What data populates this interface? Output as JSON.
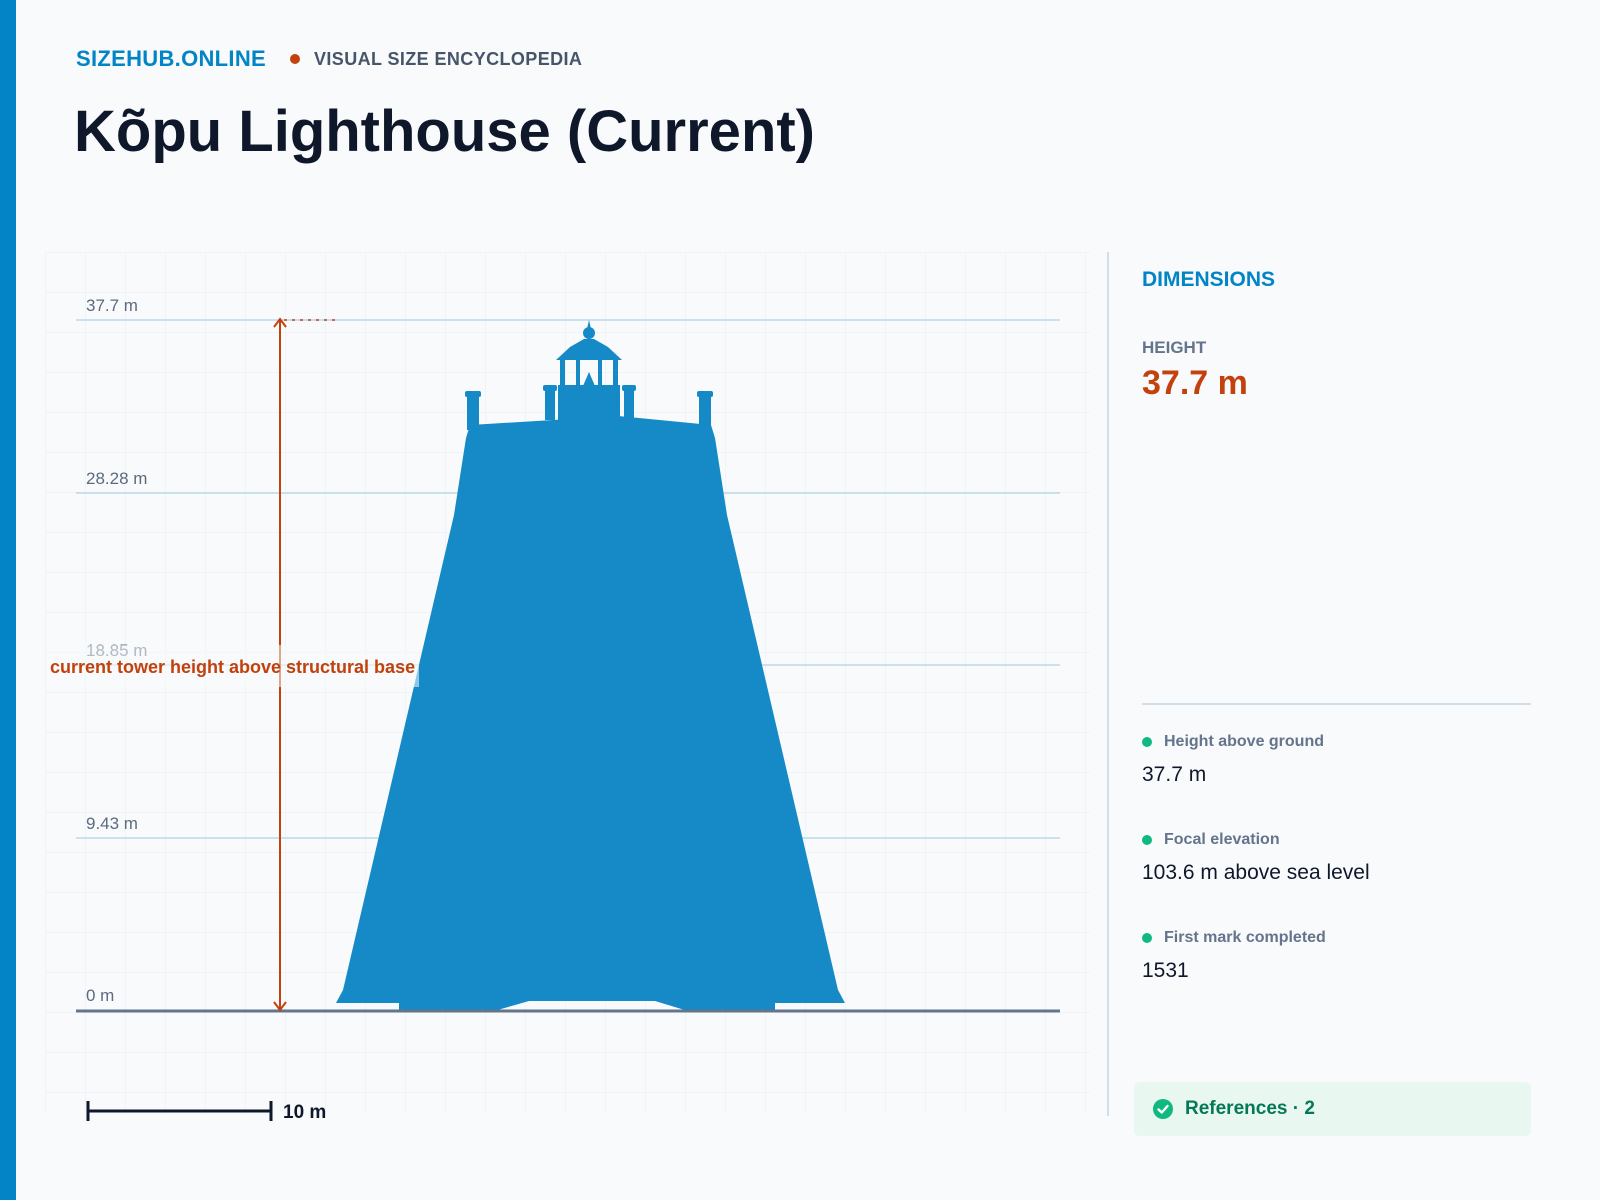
{
  "header": {
    "brand": "SIZEHUB.ONLINE",
    "tagline": "VISUAL SIZE ENCYCLOPEDIA",
    "title": "Kõpu Lighthouse (Current)"
  },
  "diagram": {
    "ticks": [
      "37.7 m",
      "28.28 m",
      "18.85 m",
      "9.43 m",
      "0 m"
    ],
    "annotation": "current tower height above structural base",
    "scale_label": "10 m",
    "height_m": 37.7,
    "scale_length_m": 10,
    "colors": {
      "silhouette": "#1689c7",
      "annotation": "#c2410c",
      "accent": "#0284c7"
    }
  },
  "panel": {
    "title": "DIMENSIONS",
    "height_label": "HEIGHT",
    "height_value": "37.7 m",
    "stats": [
      {
        "label": "Height above ground",
        "value": "37.7 m"
      },
      {
        "label": "Focal elevation",
        "value": "103.6 m above sea level"
      },
      {
        "label": "First mark completed",
        "value": "1531"
      }
    ],
    "references_label": "References · 2"
  }
}
